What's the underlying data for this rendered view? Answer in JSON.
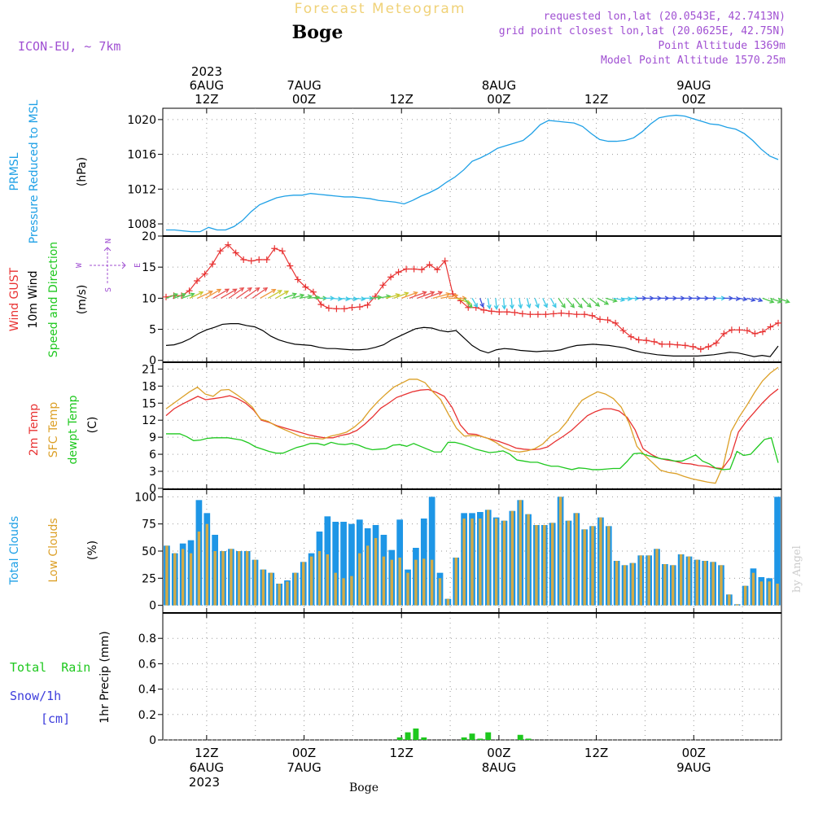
{
  "header": {
    "top_title": "Forecast Meteogram",
    "location": "Boge",
    "model": "ICON-EU, ~ 7km",
    "requested": "requested lon,lat (20.0543E, 42.7413N)",
    "grid_point": "grid point closest lon,lat (20.0625E, 42.75N)",
    "point_altitude": "Point Altitude 1369m",
    "model_altitude": "Model Point Altitude 1570.25m",
    "watermark": "by Angel",
    "footer_location": "Boge"
  },
  "colors": {
    "pressure": "#1ea0e6",
    "gust": "#e83232",
    "wind10m": "#000000",
    "t2m": "#e83232",
    "sfc": "#dca028",
    "dewpt": "#1ec81e",
    "total_clouds": "#1e96e6",
    "low_clouds": "#d2aa46",
    "rain": "#1ec81e",
    "snow_label": "#3c3cdc",
    "info": "#a050d2",
    "title_faint": "#f0d278"
  },
  "chart_data": [
    {
      "id": "pressure",
      "type": "line",
      "ylabel_lines": [
        "PRMSL",
        "Pressure Reduced to MSL"
      ],
      "unit": "(hPa)",
      "yticks": [
        "1008",
        "1012",
        "1016",
        "1020"
      ],
      "ylim": [
        1006,
        1022
      ],
      "series": [
        {
          "values": [
            1007.3,
            1007.3,
            1007.2,
            1007.1,
            1007.1,
            1007.6,
            1007.3,
            1007.3,
            1007.7,
            1008.4,
            1009.4,
            1010.2,
            1010.6,
            1011.0,
            1011.2,
            1011.3,
            1011.3,
            1011.5,
            1011.4,
            1011.3,
            1011.2,
            1011.1,
            1011.1,
            1011.0,
            1010.9,
            1010.7,
            1010.6,
            1010.5,
            1010.3,
            1010.7,
            1011.2,
            1011.6,
            1012.1,
            1012.8,
            1013.4,
            1014.2,
            1015.2,
            1015.6,
            1016.1,
            1016.7,
            1017.0,
            1017.3,
            1017.6,
            1018.4,
            1019.4,
            1019.9,
            1019.8,
            1019.7,
            1019.6,
            1019.2,
            1018.4,
            1017.7,
            1017.5,
            1017.5,
            1017.6,
            1017.9,
            1018.6,
            1019.5,
            1020.2,
            1020.4,
            1020.5,
            1020.4,
            1020.1,
            1019.8,
            1019.5,
            1019.4,
            1019.1,
            1018.9,
            1018.4,
            1017.6,
            1016.6,
            1015.8,
            1015.4
          ]
        }
      ]
    },
    {
      "id": "wind",
      "type": "line",
      "ylabel_lines": [
        "Wind GUST",
        "10m Wind",
        "Speed and Direction"
      ],
      "unit": "(m/s)",
      "compass": {
        "n": "N",
        "s": "S",
        "w": "W",
        "e": "E"
      },
      "yticks": [
        "0",
        "5",
        "10",
        "15",
        "20"
      ],
      "ylim": [
        0,
        20
      ],
      "series": [
        {
          "name": "Wind GUST",
          "values": [
            10.2,
            10.4,
            10.4,
            11.2,
            12.8,
            13.9,
            15.5,
            17.6,
            18.6,
            17.3,
            16.2,
            16.0,
            16.2,
            16.2,
            18.0,
            17.6,
            15.2,
            13.0,
            11.8,
            11.0,
            9.0,
            8.4,
            8.3,
            8.3,
            8.5,
            8.6,
            8.9,
            10.3,
            12.1,
            13.4,
            14.2,
            14.7,
            14.7,
            14.6,
            15.4,
            14.6,
            16.0,
            10.7,
            9.6,
            8.5,
            8.5,
            8.1,
            7.9,
            7.8,
            7.8,
            7.7,
            7.5,
            7.4,
            7.4,
            7.4,
            7.5,
            7.6,
            7.5,
            7.4,
            7.4,
            7.2,
            6.6,
            6.5,
            6.0,
            4.8,
            3.8,
            3.3,
            3.2,
            3.0,
            2.6,
            2.6,
            2.5,
            2.4,
            2.2,
            1.8,
            2.2,
            2.8,
            4.3,
            4.9,
            4.9,
            4.8,
            4.3,
            4.6,
            5.4,
            6.0
          ]
        },
        {
          "name": "10m Wind",
          "values": [
            2.4,
            2.5,
            2.9,
            3.5,
            4.3,
            4.9,
            5.3,
            5.8,
            5.9,
            5.9,
            5.6,
            5.4,
            4.8,
            3.9,
            3.3,
            2.9,
            2.6,
            2.5,
            2.4,
            2.1,
            1.9,
            1.9,
            1.8,
            1.7,
            1.7,
            1.8,
            2.1,
            2.5,
            3.3,
            3.9,
            4.5,
            5.1,
            5.3,
            5.2,
            4.8,
            4.6,
            4.8,
            3.6,
            2.4,
            1.6,
            1.2,
            1.7,
            1.9,
            1.8,
            1.6,
            1.5,
            1.4,
            1.5,
            1.5,
            1.7,
            2.1,
            2.4,
            2.5,
            2.6,
            2.5,
            2.4,
            2.2,
            2.0,
            1.6,
            1.3,
            1.1,
            0.9,
            0.8,
            0.7,
            0.7,
            0.7,
            0.7,
            0.8,
            0.9,
            1.1,
            1.3,
            1.2,
            0.9,
            0.6,
            0.8,
            0.6,
            2.3
          ]
        },
        {
          "name": "Speed and Direction",
          "dir_deg": [
            250,
            250,
            250,
            245,
            245,
            240,
            240,
            240,
            235,
            235,
            235,
            235,
            240,
            240,
            240,
            250,
            255,
            260,
            265,
            270,
            270,
            275,
            275,
            275,
            275,
            270,
            265,
            260,
            255,
            250,
            250,
            250,
            250,
            250,
            255,
            260,
            270,
            290,
            320,
            330,
            340,
            350,
            355,
            355,
            355,
            350,
            345,
            340,
            335,
            330,
            325,
            320,
            320,
            315,
            310,
            300,
            285,
            280,
            275,
            272,
            270,
            270,
            270,
            270,
            270,
            270,
            270,
            270,
            270,
            270,
            270,
            270,
            275,
            280,
            285,
            290,
            290,
            290,
            290
          ]
        }
      ]
    },
    {
      "id": "temperature",
      "type": "line",
      "ylabel_lines": [
        "2m Temp",
        "SFC Temp",
        "dewpt Temp"
      ],
      "unit": "(C)",
      "yticks": [
        "0",
        "3",
        "6",
        "9",
        "12",
        "15",
        "18",
        "21"
      ],
      "ylim": [
        0,
        22
      ],
      "series": [
        {
          "name": "2m Temp",
          "values": [
            12.8,
            14.0,
            14.8,
            15.5,
            16.2,
            15.6,
            15.8,
            16.0,
            16.3,
            15.8,
            15.0,
            13.8,
            12.0,
            11.6,
            11.0,
            10.6,
            10.2,
            9.8,
            9.4,
            9.1,
            8.9,
            8.9,
            9.3,
            9.6,
            10.2,
            11.3,
            12.6,
            14.1,
            15.0,
            16.0,
            16.5,
            17.0,
            17.3,
            17.4,
            16.9,
            16.2,
            14.2,
            11.2,
            9.6,
            9.5,
            9.0,
            8.6,
            8.2,
            7.7,
            7.1,
            6.9,
            6.8,
            6.9,
            7.3,
            8.3,
            9.2,
            10.2,
            11.5,
            12.8,
            13.5,
            14.0,
            14.0,
            13.6,
            12.5,
            10.3,
            7.0,
            6.0,
            5.3,
            5.0,
            4.8,
            4.4,
            4.3,
            4.0,
            3.9,
            3.6,
            3.5,
            5.4,
            9.9,
            11.8,
            13.4,
            15.0,
            16.4,
            17.5
          ]
        },
        {
          "name": "SFC Temp",
          "values": [
            14.0,
            15.0,
            16.0,
            17.0,
            17.8,
            16.6,
            16.2,
            17.3,
            17.4,
            16.5,
            15.5,
            14.3,
            12.2,
            11.8,
            11.0,
            10.4,
            9.8,
            9.2,
            8.9,
            8.8,
            8.7,
            9.2,
            9.5,
            9.9,
            10.8,
            12.0,
            13.8,
            15.3,
            16.6,
            17.8,
            18.5,
            19.2,
            19.2,
            18.6,
            17.0,
            15.6,
            13.0,
            10.6,
            9.2,
            9.3,
            9.2,
            8.8,
            8.1,
            7.2,
            6.6,
            6.4,
            6.6,
            7.0,
            7.8,
            9.2,
            10.0,
            11.6,
            13.7,
            15.5,
            16.3,
            17.0,
            16.6,
            15.8,
            14.3,
            11.5,
            7.4,
            5.8,
            4.5,
            3.2,
            2.8,
            2.6,
            2.1,
            1.7,
            1.4,
            1.1,
            0.9,
            4.0,
            10.0,
            12.5,
            14.6,
            16.9,
            18.9,
            20.3,
            21.3
          ]
        },
        {
          "name": "dewpt Temp",
          "values": [
            9.6,
            9.6,
            9.6,
            9.1,
            8.4,
            8.5,
            8.8,
            8.9,
            8.9,
            8.9,
            8.7,
            8.5,
            8.0,
            7.3,
            6.9,
            6.5,
            6.2,
            6.2,
            6.7,
            7.2,
            7.5,
            7.9,
            7.9,
            7.6,
            8.1,
            7.8,
            7.7,
            7.9,
            7.6,
            7.1,
            6.8,
            6.9,
            7.0,
            7.6,
            7.7,
            7.4,
            7.9,
            7.4,
            6.9,
            6.4,
            6.4,
            8.1,
            8.1,
            7.8,
            7.4,
            6.9,
            6.6,
            6.3,
            6.4,
            6.6,
            6.0,
            5.0,
            4.8,
            4.6,
            4.6,
            4.2,
            3.9,
            3.9,
            3.6,
            3.3,
            3.6,
            3.5,
            3.3,
            3.3,
            3.4,
            3.5,
            3.5,
            4.7,
            6.1,
            6.2,
            5.8,
            5.5,
            5.2,
            5.1,
            4.8,
            4.8,
            5.3,
            5.9,
            4.8,
            4.3,
            3.5,
            3.3,
            3.4,
            6.5,
            5.8,
            6.0,
            7.3,
            8.6,
            8.9,
            4.5
          ]
        }
      ]
    },
    {
      "id": "clouds",
      "type": "bar",
      "ylabel_lines": [
        "Total Clouds",
        "Low Clouds"
      ],
      "unit": "(%)",
      "yticks": [
        "0",
        "25",
        "50",
        "75",
        "100"
      ],
      "ylim": [
        0,
        105
      ],
      "series": [
        {
          "name": "Total Clouds",
          "values": [
            55,
            48,
            57,
            60,
            97,
            85,
            65,
            50,
            52,
            50,
            50,
            42,
            33,
            30,
            20,
            23,
            30,
            40,
            48,
            68,
            82,
            77,
            77,
            75,
            79,
            71,
            74,
            65,
            51,
            79,
            33,
            53,
            80,
            100,
            30,
            6,
            44,
            85,
            85,
            86,
            88,
            81,
            78,
            87,
            97,
            84,
            74,
            74,
            76,
            100,
            78,
            85,
            70,
            73,
            81,
            73,
            41,
            37,
            39,
            46,
            46,
            52,
            38,
            37,
            47,
            45,
            42,
            41,
            40,
            37,
            10,
            1,
            18,
            34,
            26,
            25,
            100
          ]
        },
        {
          "name": "Low Clouds",
          "values": [
            55,
            48,
            52,
            48,
            68,
            75,
            50,
            50,
            52,
            50,
            50,
            42,
            33,
            30,
            20,
            22,
            30,
            40,
            45,
            50,
            47,
            30,
            25,
            27,
            48,
            55,
            62,
            45,
            42,
            44,
            30,
            42,
            43,
            42,
            25,
            6,
            44,
            80,
            80,
            80,
            88,
            80,
            78,
            87,
            97,
            84,
            74,
            74,
            76,
            100,
            78,
            85,
            70,
            73,
            81,
            73,
            41,
            37,
            39,
            46,
            46,
            52,
            38,
            37,
            47,
            45,
            42,
            41,
            40,
            37,
            10,
            1,
            18,
            30,
            22,
            22,
            20
          ]
        }
      ]
    },
    {
      "id": "precip",
      "type": "bar",
      "ylabel_lines": [
        "Total  Rain",
        "Snow/1h",
        "[cm]"
      ],
      "unit": "1hr Precip (mm)",
      "yticks": [
        "0",
        "0.2",
        "0.4",
        "0.6",
        "0.8"
      ],
      "ylim": [
        0,
        1.0
      ],
      "series": [
        {
          "name": "Total Rain",
          "values": [
            0,
            0,
            0,
            0,
            0,
            0,
            0,
            0,
            0,
            0,
            0,
            0,
            0,
            0,
            0,
            0,
            0,
            0,
            0,
            0,
            0,
            0,
            0,
            0,
            0,
            0,
            0,
            0,
            0,
            0.02,
            0.06,
            0.09,
            0.02,
            0,
            0,
            0,
            0,
            0.02,
            0.05,
            0.01,
            0.06,
            0,
            0,
            0,
            0.04,
            0.01,
            0,
            0,
            0,
            0,
            0,
            0,
            0,
            0,
            0,
            0,
            0,
            0,
            0,
            0,
            0,
            0,
            0,
            0,
            0,
            0,
            0,
            0,
            0,
            0,
            0,
            0,
            0,
            0,
            0,
            0,
            0
          ]
        }
      ]
    }
  ],
  "xaxis": {
    "top_year": "2023",
    "labels": [
      {
        "day": "6AUG",
        "time": "12Z",
        "hour": 12
      },
      {
        "day": "7AUG",
        "time": "00Z",
        "hour": 24
      },
      {
        "day": "",
        "time": "12Z",
        "hour": 36
      },
      {
        "day": "8AUG",
        "time": "00Z",
        "hour": 48
      },
      {
        "day": "",
        "time": "12Z",
        "hour": 60
      },
      {
        "day": "9AUG",
        "time": "00Z",
        "hour": 72
      }
    ],
    "bottom_year": "2023",
    "bottom_first_day": "6AUG",
    "start_hour": 6.6,
    "end_hour": 82.8
  }
}
